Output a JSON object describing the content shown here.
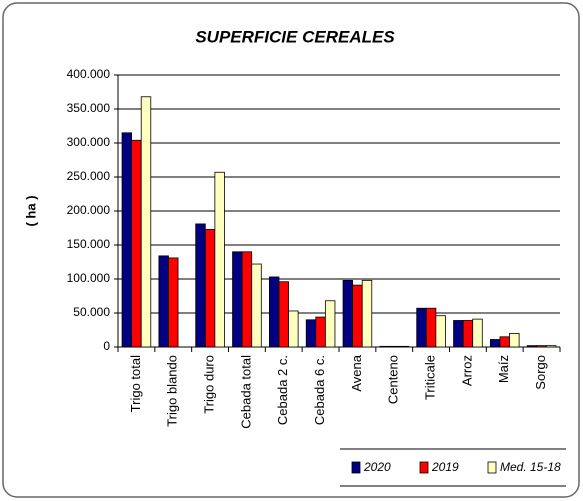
{
  "chart_data": {
    "type": "bar",
    "title": "SUPERFICIE CEREALES",
    "y_label": "( ha )",
    "categories": [
      "Trigo total",
      "Trigo blando",
      "Trigo duro",
      "Cebada total",
      "Cebada 2 c.",
      "Cebada 6 c.",
      "Avena",
      "Centeno",
      "Triticale",
      "Arroz",
      "Maíz",
      "Sorgo"
    ],
    "series": [
      {
        "name": "2020",
        "color": "#000080",
        "values": [
          315000,
          134000,
          181000,
          140000,
          103000,
          40000,
          98000,
          1000,
          57000,
          39000,
          11000,
          2000
        ]
      },
      {
        "name": "2019",
        "color": "#ff0000",
        "values": [
          304000,
          131000,
          173000,
          140000,
          96000,
          44000,
          91000,
          1000,
          57000,
          39000,
          15000,
          2000
        ]
      },
      {
        "name": "Med. 15-18",
        "color": "#ffffc0",
        "values": [
          368000,
          null,
          257000,
          122000,
          53000,
          68000,
          98000,
          1000,
          46000,
          41000,
          20000,
          2000
        ]
      }
    ],
    "ylim": [
      0,
      400000
    ],
    "yticks": [
      0,
      {
        "value": 50000,
        "label": "50.000"
      },
      {
        "value": 100000,
        "label": "100.000"
      },
      {
        "value": 150000,
        "label": "150.000"
      },
      {
        "value": 200000,
        "label": "200.000"
      },
      {
        "value": 250000,
        "label": "250.000"
      },
      {
        "value": 300000,
        "label": "300.000"
      },
      {
        "value": 350000,
        "label": "350.000"
      },
      {
        "value": 400000,
        "label": "400.000"
      }
    ],
    "grid": true
  }
}
